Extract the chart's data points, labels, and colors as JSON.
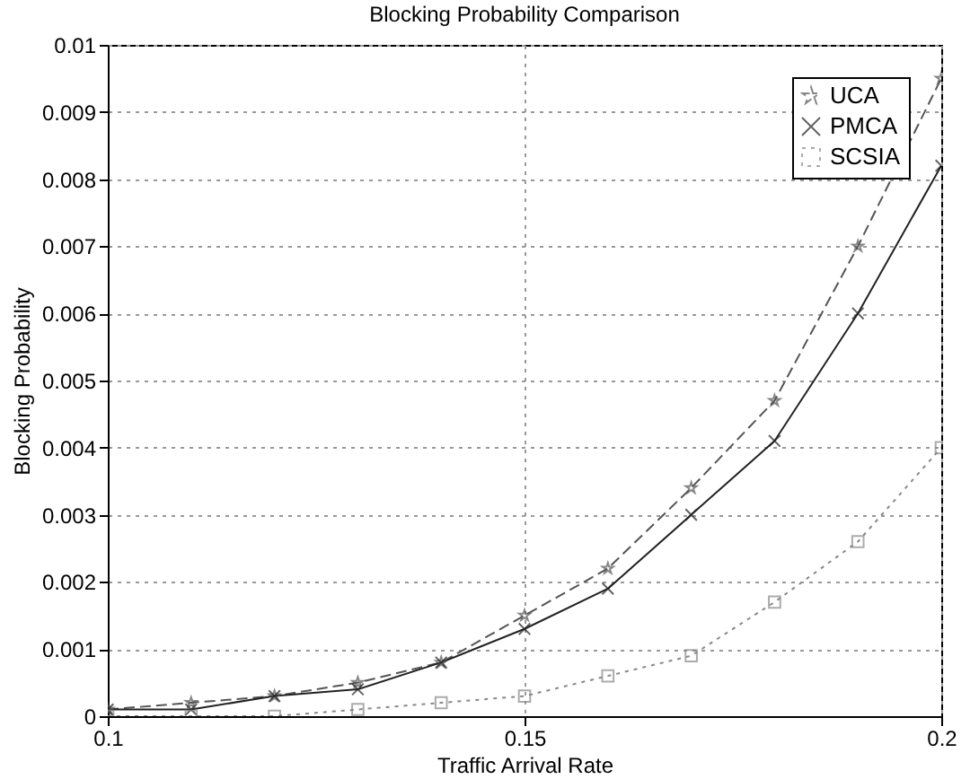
{
  "chart_data": {
    "type": "line",
    "title": "Blocking Probability Comparison",
    "xlabel": "Traffic Arrival Rate",
    "ylabel": "Blocking Probability",
    "x": [
      0.1,
      0.11,
      0.12,
      0.13,
      0.14,
      0.15,
      0.16,
      0.17,
      0.18,
      0.19,
      0.2
    ],
    "series": [
      {
        "name": "UCA",
        "color": "#555555",
        "marker": "star",
        "line_style": "dashed",
        "values": [
          0.0001,
          0.0002,
          0.0003,
          0.0005,
          0.0008,
          0.0015,
          0.0022,
          0.0034,
          0.0047,
          0.007,
          0.0095
        ]
      },
      {
        "name": "PMCA",
        "color": "#222222",
        "marker": "cross",
        "line_style": "solid",
        "values": [
          0.0001,
          0.0001,
          0.0003,
          0.0004,
          0.0008,
          0.0013,
          0.0019,
          0.003,
          0.0041,
          0.006,
          0.0082
        ]
      },
      {
        "name": "SCSIA",
        "color": "#888888",
        "marker": "square",
        "line_style": "dotted",
        "values": [
          0,
          0,
          0,
          0.0001,
          0.0002,
          0.0003,
          0.0006,
          0.0009,
          0.0017,
          0.0026,
          0.004
        ]
      }
    ],
    "xlim": [
      0.1,
      0.2
    ],
    "xticks": [
      0.1,
      0.15,
      0.2
    ],
    "ylim": [
      0,
      0.01
    ],
    "yticks": [
      0,
      0.001,
      0.002,
      0.003,
      0.004,
      0.005,
      0.006,
      0.007,
      0.008,
      0.009,
      0.01
    ],
    "grid": true,
    "legend": "top right"
  }
}
